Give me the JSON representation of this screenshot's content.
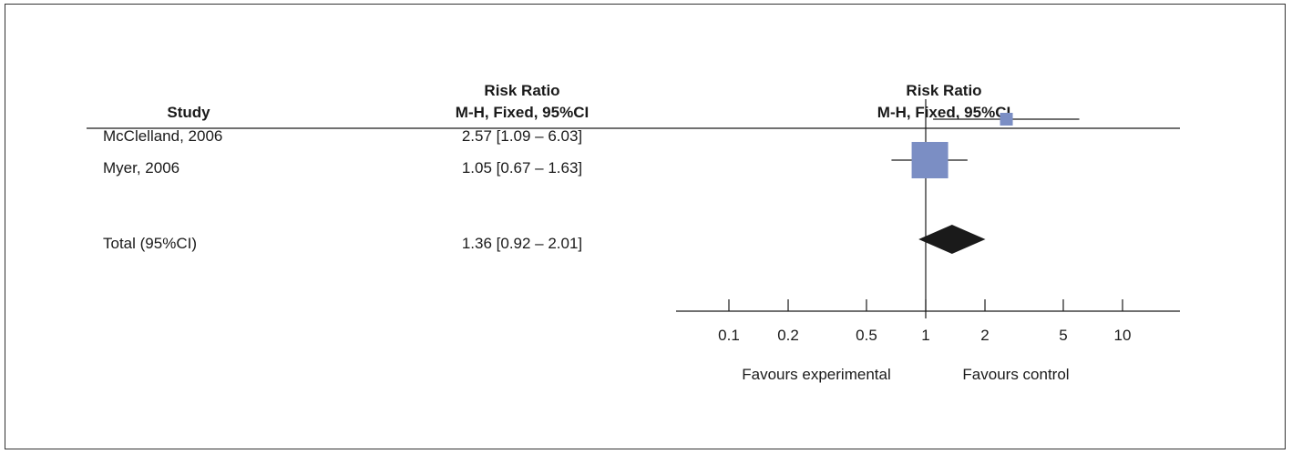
{
  "chart_data": {
    "type": "forest",
    "columns": {
      "study_header": "Study",
      "estimate_header_line1": "Risk Ratio",
      "estimate_header_line2": "M-H, Fixed, 95%CI",
      "plot_header_line1": "Risk Ratio",
      "plot_header_line2": "M-H, Fixed, 95%CI"
    },
    "studies": [
      {
        "name": "McClelland, 2006",
        "label": "2.57 [1.09 – 6.03]",
        "rr": 2.57,
        "lower": 1.09,
        "upper": 6.03,
        "weight": 0.28
      },
      {
        "name": "Myer, 2006",
        "label": "1.05 [0.67 – 1.63]",
        "rr": 1.05,
        "lower": 0.67,
        "upper": 1.63,
        "weight": 0.72
      }
    ],
    "total": {
      "name": "Total (95%CI)",
      "label": "1.36 [0.92 – 2.01]",
      "rr": 1.36,
      "lower": 0.92,
      "upper": 2.01
    },
    "x_axis": {
      "scale": "log",
      "ticks": [
        0.1,
        0.2,
        0.5,
        1,
        2,
        5,
        10
      ],
      "tick_labels": [
        "0.1",
        "0.2",
        "0.5",
        "1",
        "2",
        "5",
        "10"
      ],
      "range": [
        0.05,
        20
      ],
      "null_value": 1
    },
    "favours_left": "Favours experimental",
    "favours_right": "Favours control",
    "colors": {
      "study_box": "#7b8ec4",
      "ci_line": "#1a1a1a",
      "diamond": "#1a1a1a",
      "axis": "#1a1a1a"
    }
  }
}
